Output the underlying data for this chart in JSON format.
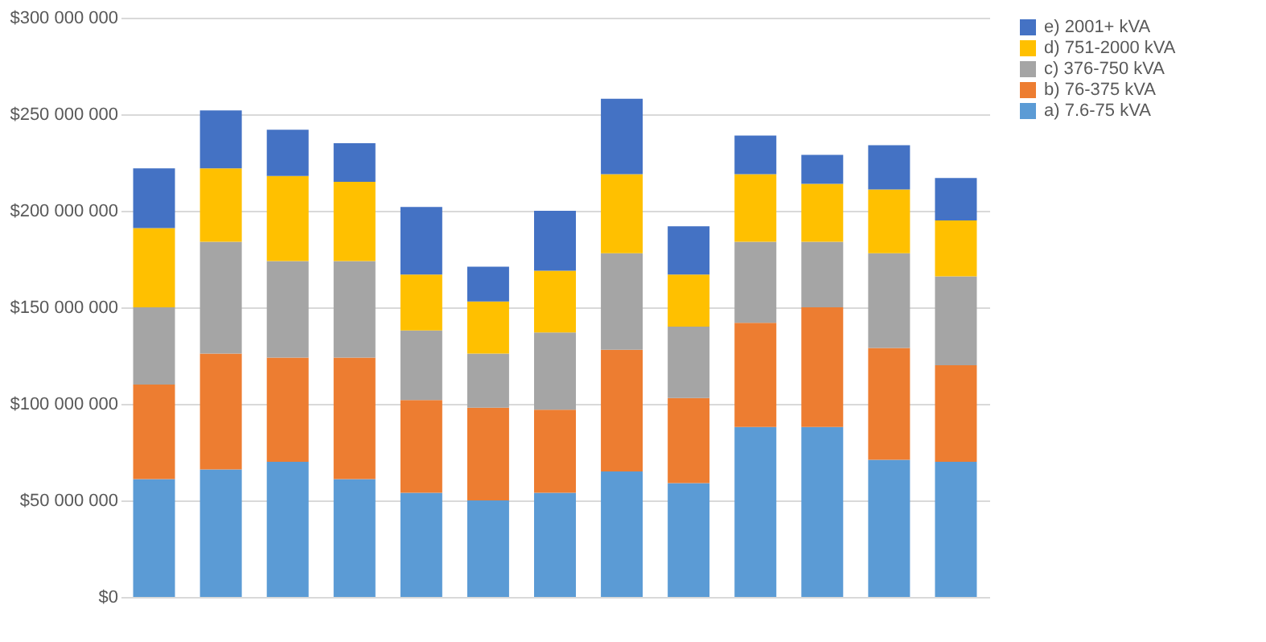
{
  "chart_data": {
    "type": "bar",
    "stacked": true,
    "categories": [
      null,
      null,
      null,
      null,
      null,
      null,
      null,
      null,
      null,
      null,
      null,
      null,
      null
    ],
    "series": [
      {
        "name": "a) 7.6-75 kVA",
        "color": "#5b9bd5",
        "values": [
          61000000,
          66000000,
          70000000,
          61000000,
          54000000,
          50000000,
          54000000,
          65000000,
          59000000,
          88000000,
          88000000,
          71000000,
          70000000
        ]
      },
      {
        "name": "b) 76-375 kVA",
        "color": "#ed7d31",
        "values": [
          49000000,
          60000000,
          54000000,
          63000000,
          48000000,
          48000000,
          43000000,
          63000000,
          44000000,
          54000000,
          62000000,
          58000000,
          50000000
        ]
      },
      {
        "name": "c) 376-750 kVA",
        "color": "#a5a5a5",
        "values": [
          40000000,
          58000000,
          50000000,
          50000000,
          36000000,
          28000000,
          40000000,
          50000000,
          37000000,
          42000000,
          34000000,
          49000000,
          46000000
        ]
      },
      {
        "name": "d) 751-2000 kVA",
        "color": "#ffc000",
        "values": [
          41000000,
          38000000,
          44000000,
          41000000,
          29000000,
          27000000,
          32000000,
          41000000,
          27000000,
          35000000,
          30000000,
          33000000,
          29000000
        ]
      },
      {
        "name": "e) 2001+ kVA",
        "color": "#4472c4",
        "values": [
          31000000,
          30000000,
          24000000,
          20000000,
          35000000,
          18000000,
          31000000,
          39000000,
          25000000,
          20000000,
          15000000,
          23000000,
          22000000
        ]
      }
    ],
    "ylim": [
      0,
      300000000
    ],
    "yticks": [
      {
        "value": 0,
        "label": "$0"
      },
      {
        "value": 50000000,
        "label": "$50 000 000"
      },
      {
        "value": 100000000,
        "label": "$100 000 000"
      },
      {
        "value": 150000000,
        "label": "$150 000 000"
      },
      {
        "value": 200000000,
        "label": "$200 000 000"
      },
      {
        "value": 250000000,
        "label": "$250 000 000"
      },
      {
        "value": 300000000,
        "label": "$300 000 000"
      }
    ],
    "grid": "y",
    "legend": "right",
    "tick_labels": "y"
  }
}
